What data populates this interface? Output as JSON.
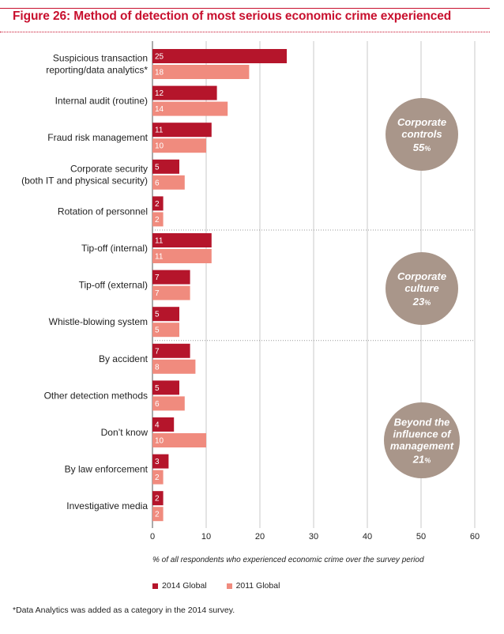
{
  "title": "Figure 26: Method of detection of most serious economic crime experienced",
  "footnote": "*Data Analytics was added as a category in the 2014 survey.",
  "colors": {
    "accent": "#c8102e",
    "series_2014": "#b5152b",
    "series_2011": "#f08b7e",
    "group_circle": "#a9968a"
  },
  "chart_data": {
    "type": "bar",
    "orientation": "horizontal",
    "categories": [
      "Suspicious transaction\nreporting/data analytics*",
      "Internal audit (routine)",
      "Fraud risk management",
      "Corporate security\n(both IT and physical security)",
      "Rotation of personnel",
      "Tip-off (internal)",
      "Tip-off (external)",
      "Whistle-blowing system",
      "By accident",
      "Other detection methods",
      "Don’t know",
      "By law enforcement",
      "Investigative media"
    ],
    "series": [
      {
        "name": "2014 Global",
        "values": [
          25,
          12,
          11,
          5,
          2,
          11,
          7,
          5,
          7,
          5,
          4,
          3,
          2
        ]
      },
      {
        "name": "2011 Global",
        "values": [
          18,
          14,
          10,
          6,
          2,
          11,
          7,
          5,
          8,
          6,
          10,
          2,
          2
        ]
      }
    ],
    "xlim": [
      0,
      60
    ],
    "xticks": [
      0,
      10,
      20,
      30,
      40,
      50,
      60
    ],
    "xlabel": "% of all respondents who experienced economic crime over the survey period",
    "ylabel": "",
    "legend_position": "bottom",
    "groups": [
      {
        "lines": [
          "Corporate",
          "controls"
        ],
        "value": "55",
        "unit": "%",
        "categories": [
          0,
          4
        ]
      },
      {
        "lines": [
          "Corporate",
          "culture"
        ],
        "value": "23",
        "unit": "%",
        "categories": [
          5,
          7
        ]
      },
      {
        "lines": [
          "Beyond the",
          "influence of",
          "management"
        ],
        "value": "21",
        "unit": "%",
        "categories": [
          8,
          12
        ]
      }
    ]
  }
}
